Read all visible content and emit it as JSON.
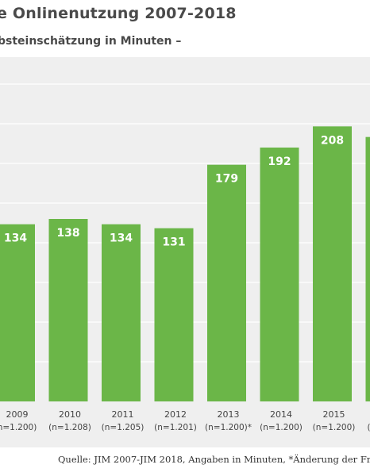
{
  "header": {
    "title": "e Onlinenutzung 2007-2018",
    "subtitle": "bsteinschätzung in Minuten –"
  },
  "footer": {
    "source": "Quelle: JIM 2007-JIM 2018, Angaben in Minuten, *Änderung der Fr"
  },
  "colors": {
    "bar": "#6bb648",
    "plot_background": "#efefef",
    "gridline": "#ffffff",
    "bar_label": "#ffffff"
  },
  "chart_data": {
    "type": "bar",
    "title": "e Onlinenutzung 2007-2018",
    "subtitle": "bsteinschätzung in Minuten –",
    "categories": [
      "2009",
      "2010",
      "2011",
      "2012",
      "2013",
      "2014",
      "2015",
      ""
    ],
    "sample_sizes": [
      "n=1.200)",
      "(n=1.208)",
      "(n=1.205)",
      "(n=1.201)",
      "(n=1.200)*",
      "(n=1.200)",
      "(n=1.200)",
      "(n"
    ],
    "values": [
      134,
      138,
      134,
      131,
      179,
      192,
      208,
      200
    ],
    "value_labels": [
      "134",
      "138",
      "134",
      "131",
      "179",
      "192",
      "208",
      ""
    ],
    "ylim": [
      0,
      240
    ],
    "grid": true,
    "xlabel": "",
    "ylabel": ""
  }
}
